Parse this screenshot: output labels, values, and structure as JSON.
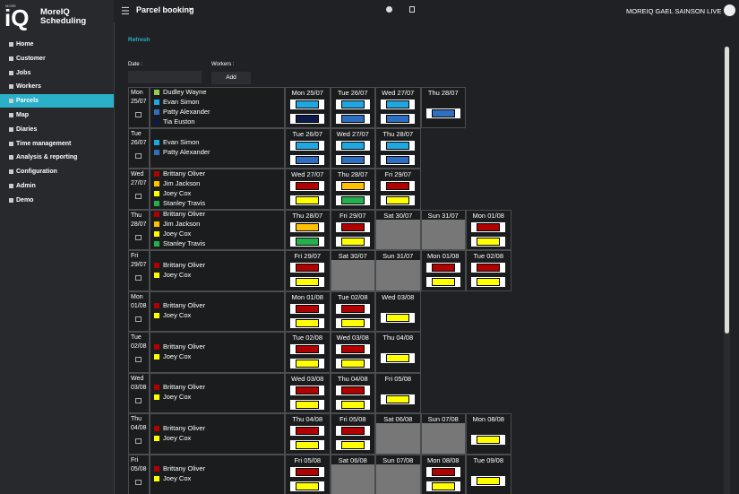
{
  "app": {
    "logo_small": "MORE",
    "logo_big": "iQ",
    "name_line1": "MoreIQ",
    "name_line2": "Scheduling",
    "page_title": "Parcel booking",
    "user": "MOREIQ GAEL SAINSON LIVE"
  },
  "sidebar": {
    "active": 4,
    "items": [
      "Home",
      "Customer",
      "Jobs",
      "Workers",
      "Parcels",
      "Map",
      "Diaries",
      "Time management",
      "Analysis & reporting",
      "Configuration",
      "Admin",
      "Demo"
    ]
  },
  "toolbar": {
    "refresh": "Refresh",
    "date_label": "Date :",
    "workers_label": "Workers :",
    "add": "Add"
  },
  "worker_colors": {
    "Dudley Wayne": "#92d050",
    "Evan Simon": "#1ea7e1",
    "Patty Alexander": "#2f6fc0",
    "Tia Euston": "#0b1a4a",
    "Brittany Oliver": "#b00000",
    "Jim Jackson": "#ffc000",
    "Joey Cox": "#ffff00",
    "Stanley Travis": "#22b14c"
  },
  "rows": [
    {
      "day": "Mon",
      "date": "25/07",
      "workers": [
        "Dudley Wayne",
        "Evan Simon",
        "Patty Alexander",
        "Tia Euston"
      ],
      "cells": [
        {
          "header": "Mon 25/07",
          "bars": [
            "#1ea7e1",
            "#0b1a4a"
          ]
        },
        {
          "header": "Tue 26/07",
          "bars": [
            "#1ea7e1",
            "#2f6fc0"
          ]
        },
        {
          "header": "Wed 27/07",
          "bars": [
            "#1ea7e1",
            "#2f6fc0"
          ]
        },
        {
          "header": "Thu 28/07",
          "bars": [
            "#2f6fc0"
          ]
        }
      ]
    },
    {
      "day": "Tue",
      "date": "26/07",
      "workers": [
        "Evan Simon",
        "Patty Alexander"
      ],
      "cells": [
        {
          "header": "Tue 26/07",
          "bars": [
            "#1ea7e1",
            "#2f6fc0"
          ]
        },
        {
          "header": "Wed 27/07",
          "bars": [
            "#1ea7e1",
            "#2f6fc0"
          ]
        },
        {
          "header": "Thu 28/07",
          "bars": [
            "#1ea7e1",
            "#2f6fc0"
          ]
        }
      ]
    },
    {
      "day": "Wed",
      "date": "27/07",
      "workers": [
        "Brittany Oliver",
        "Jim Jackson",
        "Joey Cox",
        "Stanley Travis"
      ],
      "cells": [
        {
          "header": "Wed 27/07",
          "bars": [
            "#b00000",
            "#ffff00"
          ]
        },
        {
          "header": "Thu 28/07",
          "bars": [
            "#ffc000",
            "#22b14c"
          ]
        },
        {
          "header": "Fri 29/07",
          "bars": [
            "#b00000",
            "#ffff00"
          ]
        }
      ]
    },
    {
      "day": "Thu",
      "date": "28/07",
      "workers": [
        "Brittany Oliver",
        "Jim Jackson",
        "Joey Cox",
        "Stanley Travis"
      ],
      "cells": [
        {
          "header": "Thu 28/07",
          "bars": [
            "#ffc000",
            "#22b14c"
          ]
        },
        {
          "header": "Fri 29/07",
          "bars": [
            "#b00000",
            "#ffff00"
          ]
        },
        {
          "header": "Sat 30/07",
          "shaded": true
        },
        {
          "header": "Sun 31/07",
          "shaded": true
        },
        {
          "header": "Mon 01/08",
          "bars": [
            "#b00000",
            "#ffff00"
          ]
        }
      ]
    },
    {
      "day": "Fri",
      "date": "29/07",
      "workers": [
        "Brittany Oliver",
        "Joey Cox"
      ],
      "cells": [
        {
          "header": "Fri 29/07",
          "bars": [
            "#b00000",
            "#ffff00"
          ]
        },
        {
          "header": "Sat 30/07",
          "shaded": true
        },
        {
          "header": "Sun 31/07",
          "shaded": true
        },
        {
          "header": "Mon 01/08",
          "bars": [
            "#b00000",
            "#ffff00"
          ]
        },
        {
          "header": "Tue 02/08",
          "bars": [
            "#b00000",
            "#ffff00"
          ]
        }
      ]
    },
    {
      "day": "Mon",
      "date": "01/08",
      "workers": [
        "Brittany Oliver",
        "Joey Cox"
      ],
      "cells": [
        {
          "header": "Mon 01/08",
          "bars": [
            "#b00000",
            "#ffff00"
          ]
        },
        {
          "header": "Tue 02/08",
          "bars": [
            "#b00000",
            "#ffff00"
          ]
        },
        {
          "header": "Wed 03/08",
          "bars": [
            "#ffff00"
          ]
        }
      ]
    },
    {
      "day": "Tue",
      "date": "02/08",
      "workers": [
        "Brittany Oliver",
        "Joey Cox"
      ],
      "cells": [
        {
          "header": "Tue 02/08",
          "bars": [
            "#b00000",
            "#ffff00"
          ]
        },
        {
          "header": "Wed 03/08",
          "bars": [
            "#b00000",
            "#ffff00"
          ]
        },
        {
          "header": "Thu 04/08",
          "bars": [
            "#ffff00"
          ]
        }
      ]
    },
    {
      "day": "Wed",
      "date": "03/08",
      "workers": [
        "Brittany Oliver",
        "Joey Cox"
      ],
      "cells": [
        {
          "header": "Wed 03/08",
          "bars": [
            "#b00000",
            "#ffff00"
          ]
        },
        {
          "header": "Thu 04/08",
          "bars": [
            "#b00000",
            "#ffff00"
          ]
        },
        {
          "header": "Fri 05/08",
          "bars": [
            "#ffff00"
          ]
        }
      ]
    },
    {
      "day": "Thu",
      "date": "04/08",
      "workers": [
        "Brittany Oliver",
        "Joey Cox"
      ],
      "cells": [
        {
          "header": "Thu 04/08",
          "bars": [
            "#b00000",
            "#ffff00"
          ]
        },
        {
          "header": "Fri 05/08",
          "bars": [
            "#b00000",
            "#ffff00"
          ]
        },
        {
          "header": "Sat 06/08",
          "shaded": true
        },
        {
          "header": "Sun 07/08",
          "shaded": true
        },
        {
          "header": "Mon 08/08",
          "bars": [
            "#ffff00"
          ]
        }
      ]
    },
    {
      "day": "Fri",
      "date": "05/08",
      "workers": [
        "Brittany Oliver",
        "Joey Cox"
      ],
      "cells": [
        {
          "header": "Fri 05/08",
          "bars": [
            "#b00000",
            "#ffff00"
          ]
        },
        {
          "header": "Sat 06/08",
          "shaded": true
        },
        {
          "header": "Sun 07/08",
          "shaded": true
        },
        {
          "header": "Mon 08/08",
          "bars": [
            "#b00000",
            "#ffff00"
          ]
        },
        {
          "header": "Tue 09/08",
          "bars": [
            "#ffff00"
          ]
        }
      ]
    }
  ]
}
